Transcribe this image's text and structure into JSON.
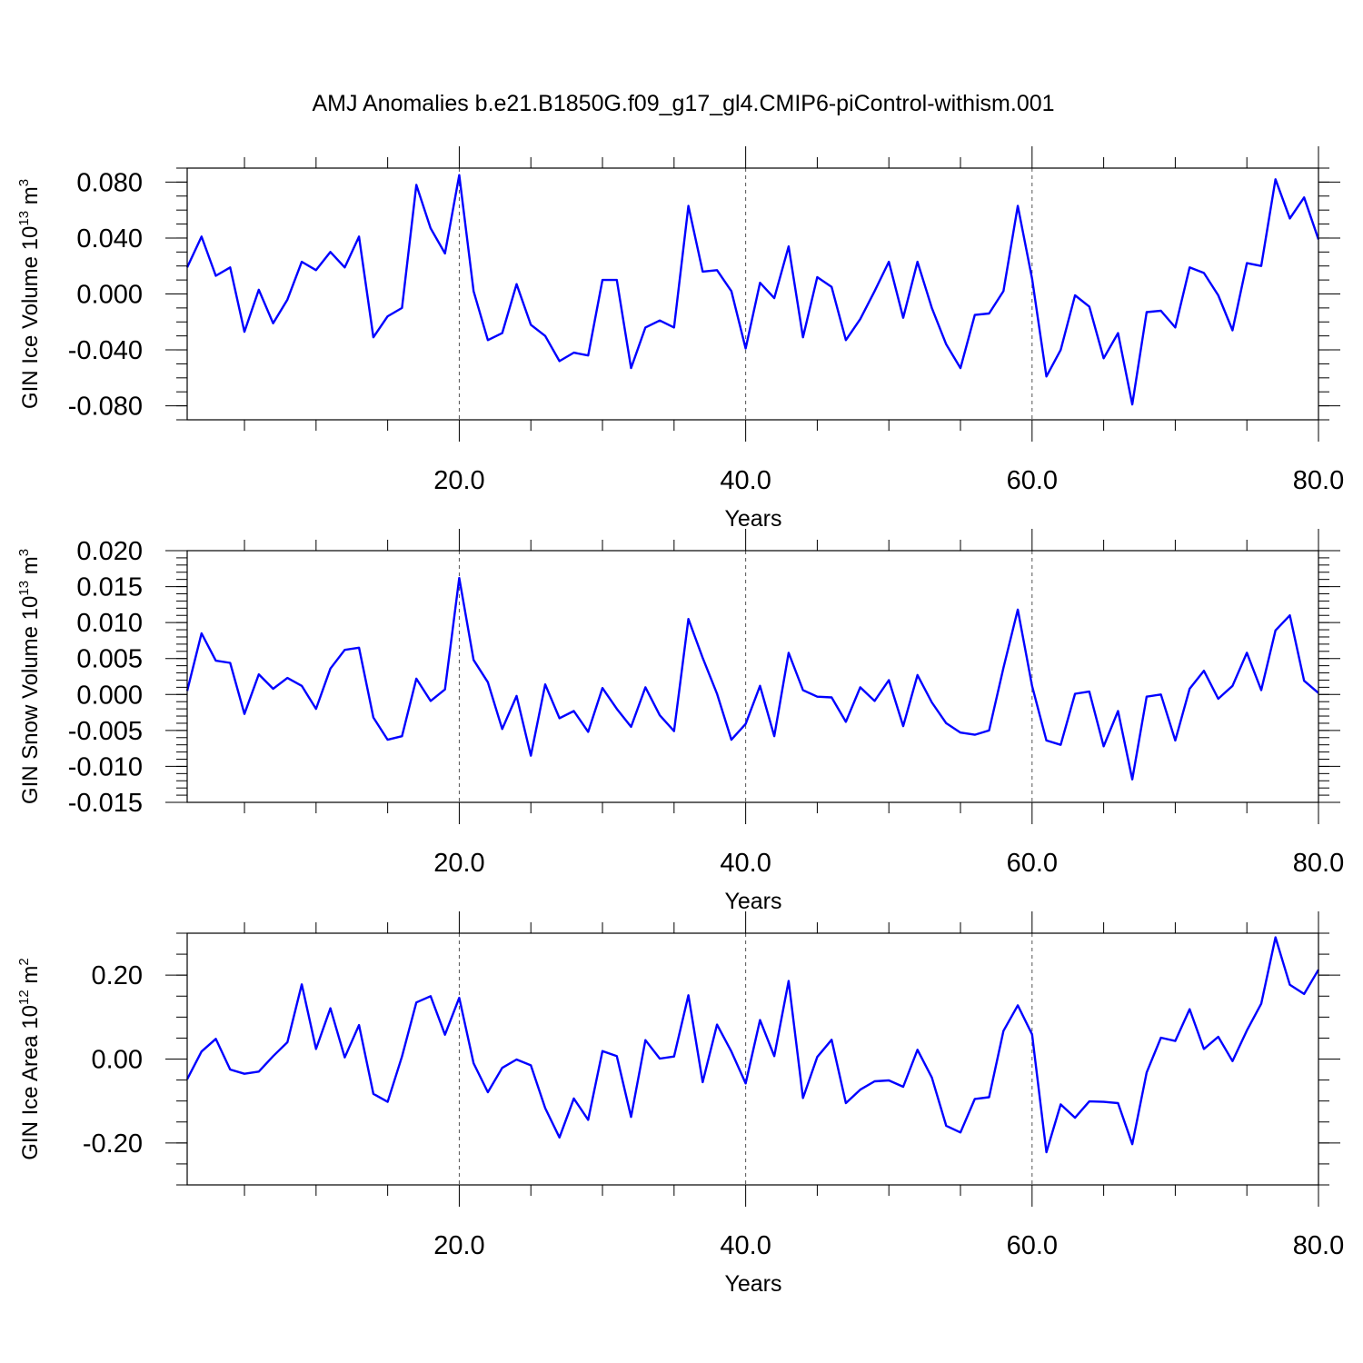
{
  "title": "AMJ Anomalies b.e21.B1850G.f09_g17_gl4.CMIP6-piControl-withism.001",
  "series_color": "#0000ff",
  "chart_data": [
    {
      "type": "line",
      "ylabel": {
        "main": "GIN Ice Volume 10",
        "exp": "13",
        "unit": " m",
        "unit_exp": "3"
      },
      "xlabel": "Years",
      "xlim": [
        1,
        80
      ],
      "ylim": [
        -0.09,
        0.09
      ],
      "xticks": [
        20,
        40,
        60,
        80
      ],
      "xtick_labels": [
        "20.0",
        "40.0",
        "60.0",
        "80.0"
      ],
      "yticks": [
        -0.08,
        -0.04,
        0,
        0.04,
        0.08
      ],
      "ytick_labels": [
        "-0.080",
        "-0.040",
        "0.000",
        "0.040",
        "0.080"
      ],
      "yminor_step": 0.01,
      "vgrid": [
        20,
        40,
        60
      ],
      "x_start": 1,
      "values": [
        0.019,
        0.041,
        0.013,
        0.019,
        -0.027,
        0.003,
        -0.021,
        -0.004,
        0.023,
        0.017,
        0.03,
        0.019,
        0.041,
        -0.031,
        -0.016,
        -0.01,
        0.078,
        0.047,
        0.029,
        0.085,
        0.002,
        -0.033,
        -0.028,
        0.007,
        -0.022,
        -0.03,
        -0.048,
        -0.042,
        -0.044,
        0.01,
        0.01,
        -0.053,
        -0.024,
        -0.019,
        -0.024,
        0.063,
        0.016,
        0.017,
        0.002,
        -0.039,
        0.008,
        -0.003,
        0.034,
        -0.031,
        0.012,
        0.005,
        -0.033,
        -0.018,
        0.002,
        0.023,
        -0.017,
        0.023,
        -0.01,
        -0.036,
        -0.053,
        -0.015,
        -0.014,
        0.002,
        0.063,
        0.011,
        -0.059,
        -0.04,
        -0.001,
        -0.009,
        -0.046,
        -0.028,
        -0.079,
        -0.013,
        -0.012,
        -0.024,
        0.019,
        0.015,
        -0.001,
        -0.026,
        0.022,
        0.02,
        0.082,
        0.054,
        0.069,
        0.039
      ]
    },
    {
      "type": "line",
      "ylabel": {
        "main": "GIN Snow Volume 10",
        "exp": "13",
        "unit": " m",
        "unit_exp": "3"
      },
      "xlabel": "Years",
      "xlim": [
        1,
        80
      ],
      "ylim": [
        -0.015,
        0.02
      ],
      "xticks": [
        20,
        40,
        60,
        80
      ],
      "xtick_labels": [
        "20.0",
        "40.0",
        "60.0",
        "80.0"
      ],
      "yticks": [
        -0.015,
        -0.01,
        -0.005,
        0,
        0.005,
        0.01,
        0.015,
        0.02
      ],
      "ytick_labels": [
        "-0.015",
        "-0.010",
        "-0.005",
        "0.000",
        "0.005",
        "0.010",
        "0.015",
        "0.020"
      ],
      "yminor_step": 0.001,
      "vgrid": [
        20,
        40,
        60
      ],
      "x_start": 1,
      "values": [
        0.0005,
        0.0085,
        0.0047,
        0.0044,
        -0.0027,
        0.0028,
        0.0008,
        0.0023,
        0.0012,
        -0.002,
        0.0036,
        0.0062,
        0.0065,
        -0.0032,
        -0.0063,
        -0.0058,
        0.0022,
        -0.0009,
        0.0007,
        0.0162,
        0.0048,
        0.0017,
        -0.0048,
        -0.0002,
        -0.0085,
        0.0014,
        -0.0033,
        -0.0023,
        -0.0052,
        0.0009,
        -0.002,
        -0.0045,
        0.001,
        -0.0029,
        -0.0051,
        0.0105,
        0.0051,
        0.0001,
        -0.0063,
        -0.0041,
        0.0012,
        -0.0058,
        0.0058,
        0.0006,
        -0.0003,
        -0.0004,
        -0.0038,
        0.001,
        -0.0009,
        0.002,
        -0.0044,
        0.0027,
        -0.0011,
        -0.004,
        -0.0053,
        -0.0056,
        -0.005,
        0.0037,
        0.0118,
        0.0012,
        -0.0064,
        -0.007,
        0.0001,
        0.0004,
        -0.0072,
        -0.0023,
        -0.0118,
        -0.0003,
        0.0,
        -0.0064,
        0.0008,
        0.0033,
        -0.0006,
        0.0012,
        0.0058,
        0.0006,
        0.0089,
        0.011,
        0.0019,
        0.0002
      ]
    },
    {
      "type": "line",
      "ylabel": {
        "main": "GIN Ice Area 10",
        "exp": "12",
        "unit": " m",
        "unit_exp": "2"
      },
      "xlabel": "Years",
      "xlim": [
        1,
        80
      ],
      "ylim": [
        -0.3,
        0.3
      ],
      "xticks": [
        20,
        40,
        60,
        80
      ],
      "xtick_labels": [
        "20.0",
        "40.0",
        "60.0",
        "80.0"
      ],
      "yticks": [
        -0.2,
        0,
        0.2
      ],
      "ytick_labels": [
        "-0.20",
        "0.00",
        "0.20"
      ],
      "yminor_step": 0.05,
      "vgrid": [
        20,
        40,
        60
      ],
      "x_start": 1,
      "values": [
        -0.048,
        0.018,
        0.048,
        -0.025,
        -0.035,
        -0.03,
        0.007,
        0.04,
        0.178,
        0.024,
        0.121,
        0.004,
        0.081,
        -0.083,
        -0.102,
        0.006,
        0.135,
        0.15,
        0.058,
        0.146,
        -0.01,
        -0.079,
        -0.021,
        -0.001,
        -0.015,
        -0.117,
        -0.187,
        -0.094,
        -0.145,
        0.019,
        0.007,
        -0.138,
        0.045,
        0.001,
        0.006,
        0.152,
        -0.055,
        0.082,
        0.018,
        -0.058,
        0.093,
        0.007,
        0.186,
        -0.093,
        0.005,
        0.046,
        -0.105,
        -0.073,
        -0.053,
        -0.051,
        -0.066,
        0.022,
        -0.044,
        -0.159,
        -0.175,
        -0.095,
        -0.091,
        0.067,
        0.128,
        0.059,
        -0.222,
        -0.108,
        -0.14,
        -0.101,
        -0.102,
        -0.105,
        -0.203,
        -0.032,
        0.051,
        0.043,
        0.119,
        0.024,
        0.053,
        -0.005,
        0.068,
        0.132,
        0.29,
        0.177,
        0.155,
        0.213
      ]
    }
  ]
}
